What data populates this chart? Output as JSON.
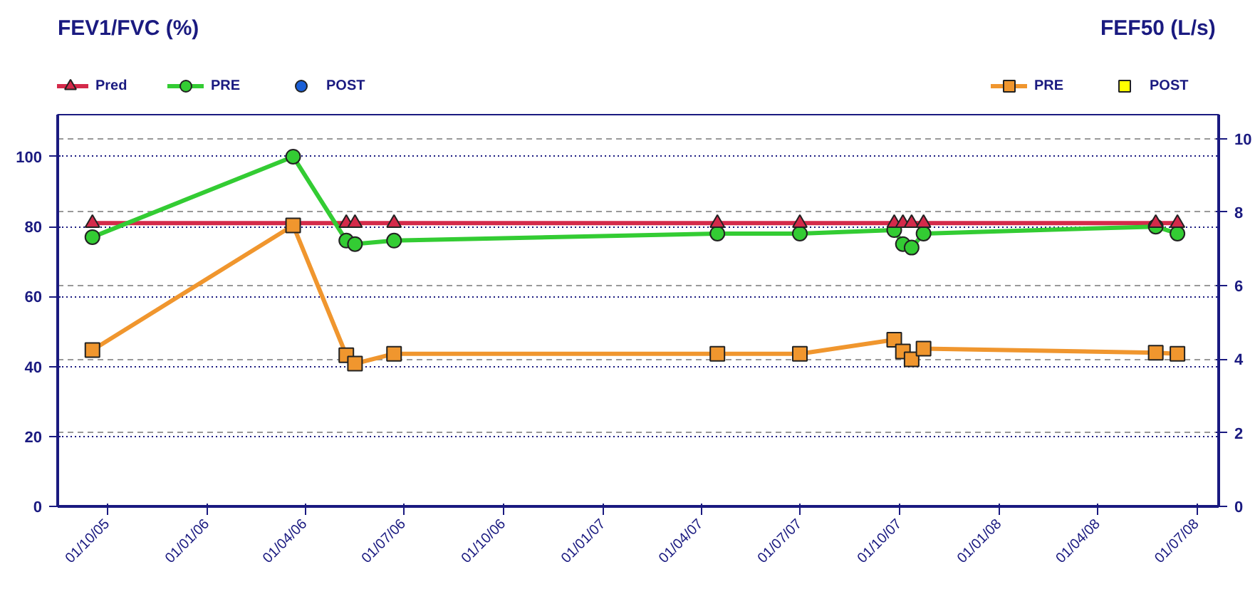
{
  "chart_data": {
    "type": "line",
    "ylabel": "FEV1/FVC (%)",
    "y2label": "FEF50 (L/s)",
    "x": [
      "2005-09-17",
      "2006-03-21",
      "2006-05-09",
      "2006-05-17",
      "2006-06-22",
      "2007-04-16",
      "2007-07-01",
      "2007-09-26",
      "2007-10-04",
      "2007-10-12",
      "2007-10-23",
      "2008-05-24",
      "2008-06-13"
    ],
    "xlim": [
      "2005-08-16",
      "2008-07-21"
    ],
    "xticks": [
      {
        "value": "2005-10-01",
        "label": "01/10/05"
      },
      {
        "value": "2006-01-01",
        "label": "01/01/06"
      },
      {
        "value": "2006-04-01",
        "label": "01/04/06"
      },
      {
        "value": "2006-07-01",
        "label": "01/07/06"
      },
      {
        "value": "2006-10-01",
        "label": "01/10/06"
      },
      {
        "value": "2007-01-01",
        "label": "01/01/07"
      },
      {
        "value": "2007-04-01",
        "label": "01/04/07"
      },
      {
        "value": "2007-07-01",
        "label": "01/07/07"
      },
      {
        "value": "2007-10-01",
        "label": "01/10/07"
      },
      {
        "value": "2008-01-01",
        "label": "01/01/08"
      },
      {
        "value": "2008-04-01",
        "label": "01/04/08"
      },
      {
        "value": "2008-07-01",
        "label": "01/07/08"
      }
    ],
    "ylim": [
      0,
      112
    ],
    "yticks": [
      0,
      20,
      40,
      60,
      80,
      100
    ],
    "y2lim": [
      0,
      10.65
    ],
    "y2ticks": [
      0,
      2,
      4,
      6,
      8,
      10
    ],
    "grid": true,
    "legend": "top",
    "series": [
      {
        "name": "Pred",
        "marker": "triangle",
        "color": "#d42a4a",
        "x": [
          "2005-09-17",
          "2006-05-09",
          "2006-05-17",
          "2006-06-22",
          "2007-04-16",
          "2007-07-01",
          "2007-09-26",
          "2007-10-04",
          "2007-10-12",
          "2007-10-23",
          "2008-05-24",
          "2008-06-13"
        ],
        "values": [
          81,
          81,
          81,
          81,
          81,
          81,
          81,
          81,
          81,
          81,
          81,
          81
        ]
      },
      {
        "name": "PRE",
        "marker": "circle",
        "color": "#33cc33",
        "values": [
          77,
          100,
          76,
          75,
          76,
          78,
          78,
          79,
          75,
          74,
          78,
          80,
          78
        ]
      },
      {
        "name": "POST",
        "type": "scatter",
        "marker": "circle",
        "color": "#1a5fd6",
        "values": [
          null,
          null,
          null,
          null,
          null,
          null,
          null,
          null,
          null,
          null,
          null,
          null,
          null
        ]
      },
      {
        "name": "PRE",
        "marker": "square",
        "color": "#f0962e",
        "axis": "y2",
        "values": [
          4.25,
          7.64,
          4.11,
          3.88,
          4.15,
          4.15,
          4.15,
          4.53,
          4.21,
          4.0,
          4.29,
          4.18,
          4.15
        ]
      },
      {
        "name": "POST",
        "type": "scatter",
        "marker": "square",
        "color": "#ffff00",
        "axis": "y2",
        "values": [
          null,
          null,
          null,
          null,
          null,
          null,
          null,
          null,
          null,
          null,
          null,
          null,
          null
        ]
      }
    ]
  }
}
